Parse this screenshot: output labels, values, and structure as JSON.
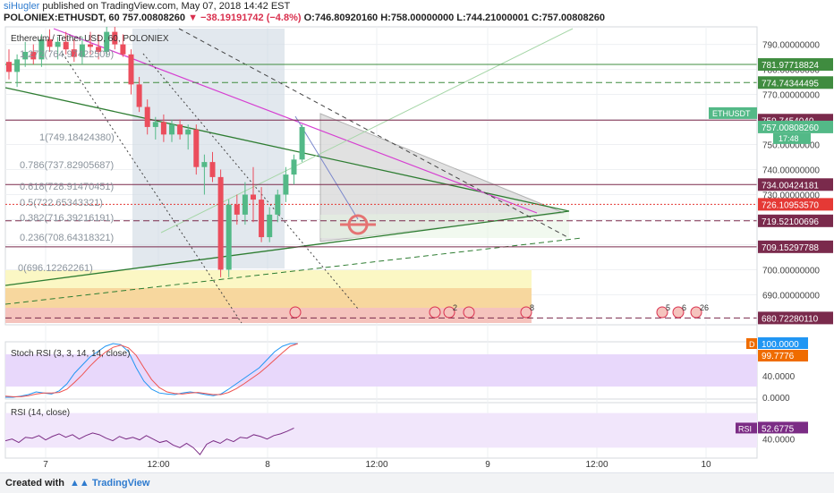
{
  "header": {
    "publisher": "siHugler",
    "published_text": "published on TradingView.com, May 07, 2018 14:42 EST",
    "symbol": "POLONIEX:ETHUSDT, 60",
    "last": "757.00808260",
    "change": "▼ −38.19191742 (−4.8%)",
    "ohlc": "O:746.80920160 H:758.00000000 L:744.21000001 C:757.00808260"
  },
  "chart_data": [
    {
      "type": "candlestick",
      "title": "Ethereum / Tether USD, 60, POLONIEX",
      "x_ticks": [
        "7",
        "12:00",
        "8",
        "12:00",
        "9",
        "12:00",
        "10"
      ],
      "y_ticks": [
        "790.00000000",
        "780.00000000",
        "770.00000000",
        "760.00000000",
        "750.00000000",
        "740.00000000",
        "730.00000000",
        "720.00000000",
        "710.00000000",
        "700.00000000",
        "690.00000000"
      ],
      "ylim": [
        678,
        797
      ],
      "candles": [
        [
          783,
          788,
          776,
          779
        ],
        [
          779,
          786,
          773,
          784
        ],
        [
          784,
          791,
          781,
          787
        ],
        [
          787,
          790,
          782,
          784
        ],
        [
          784,
          794,
          781,
          792
        ],
        [
          792,
          796,
          787,
          789
        ],
        [
          789,
          793,
          784,
          791
        ],
        [
          791,
          795,
          786,
          788
        ],
        [
          788,
          792,
          783,
          785
        ],
        [
          785,
          793,
          782,
          790
        ],
        [
          790,
          795,
          786,
          789
        ],
        [
          789,
          794,
          784,
          787
        ],
        [
          787,
          797,
          785,
          795
        ],
        [
          795,
          797,
          788,
          790
        ],
        [
          790,
          794,
          785,
          786
        ],
        [
          786,
          788,
          770,
          774
        ],
        [
          774,
          777,
          763,
          765
        ],
        [
          765,
          768,
          754,
          757
        ],
        [
          757,
          761,
          752,
          759
        ],
        [
          759,
          762,
          751,
          754
        ],
        [
          754,
          760,
          751,
          758
        ],
        [
          758,
          760,
          752,
          754
        ],
        [
          754,
          758,
          748,
          756
        ],
        [
          756,
          758,
          738,
          741
        ],
        [
          741,
          746,
          730,
          743
        ],
        [
          743,
          747,
          735,
          737
        ],
        [
          737,
          740,
          697,
          700
        ],
        [
          700,
          728,
          697,
          726
        ],
        [
          726,
          730,
          718,
          722
        ],
        [
          722,
          735,
          718,
          730
        ],
        [
          730,
          741,
          719,
          728
        ],
        [
          728,
          733,
          711,
          713
        ],
        [
          713,
          725,
          711,
          722
        ],
        [
          722,
          732,
          719,
          730
        ],
        [
          730,
          741,
          727,
          738
        ],
        [
          738,
          746,
          734,
          744
        ],
        [
          744,
          758,
          743,
          757
        ]
      ],
      "fib_levels": [
        "1.272(764.97422509)",
        "1(749.18424380)",
        "0.786(737.82905687)",
        "0.618(728.91470451)",
        "0.5(722.65343321)",
        "0.382(716.39216191)",
        "0.236(708.64318321)",
        "0(696.12262261)"
      ],
      "price_lines": [
        {
          "value": 781.97718824,
          "label": "781.97718824",
          "color": "#3f8c3f"
        },
        {
          "value": 774.74344495,
          "label": "774.74344495",
          "color": "#3f8c3f"
        },
        {
          "value": 759.745404,
          "label": "759.7454040",
          "color": "#7a2a4c"
        },
        {
          "value": 734.00424181,
          "label": "734.00424181",
          "color": "#7a2a4c"
        },
        {
          "value": 726.1095357,
          "label": "726.10953570",
          "color": "#e53935"
        },
        {
          "value": 719.52100696,
          "label": "719.52100696",
          "color": "#7a2a4c"
        },
        {
          "value": 709.15297788,
          "label": "709.15297788",
          "color": "#7a2a4c"
        },
        {
          "value": 680.7228011,
          "label": "680.72280110",
          "color": "#7a2a4c"
        }
      ],
      "last_price_label": "757.00808260",
      "symbol_badge": "ETHUSDT",
      "countdown": "17:48",
      "event_badges": [
        "2",
        "8",
        "5",
        "6",
        "26"
      ]
    },
    {
      "type": "line",
      "title": "Stoch RSI (3, 3, 14, 14, close)",
      "y_ticks": [
        "80.0000",
        "40.0000",
        "0.0000"
      ],
      "ylim": [
        0,
        100
      ],
      "series": [
        {
          "color": "#2196f3",
          "values": [
            0,
            0,
            2,
            5,
            10,
            8,
            6,
            12,
            25,
            45,
            60,
            75,
            85,
            95,
            100,
            98,
            85,
            55,
            30,
            15,
            8,
            6,
            5,
            8,
            10,
            8,
            5,
            3,
            6,
            15,
            25,
            35,
            45,
            55,
            70,
            85,
            95,
            100,
            100
          ]
        },
        {
          "color": "#ef5350",
          "values": [
            2,
            1,
            1,
            3,
            6,
            8,
            8,
            9,
            15,
            28,
            42,
            58,
            72,
            84,
            93,
            97,
            92,
            78,
            55,
            33,
            18,
            10,
            7,
            6,
            8,
            9,
            7,
            5,
            5,
            9,
            16,
            25,
            35,
            45,
            57,
            70,
            83,
            95,
            100
          ]
        }
      ],
      "value_labels": [
        "100.0000",
        "99.7776"
      ],
      "marker": "D"
    },
    {
      "type": "line",
      "title": "RSI (14, close)",
      "y_ticks": [
        "40.0000"
      ],
      "ylim": [
        20,
        80
      ],
      "series": [
        {
          "color": "#7b2c85",
          "values": [
            38,
            40,
            36,
            42,
            41,
            44,
            39,
            43,
            46,
            42,
            45,
            40,
            44,
            47,
            45,
            41,
            38,
            43,
            40,
            42,
            39,
            44,
            40,
            36,
            38,
            33,
            30,
            35,
            30,
            22,
            34,
            38,
            35,
            40,
            37,
            42,
            41,
            45,
            43,
            40,
            44,
            46,
            49,
            52.6775
          ]
        }
      ],
      "value_label": "52.6775",
      "badge": "RSI"
    }
  ],
  "footer": {
    "created": "Created with",
    "brand": "TradingView"
  },
  "colors": {
    "up": "#53b987",
    "down": "#eb4d5c",
    "grid": "#eef0f3",
    "stoch_band": "#e8d8fb",
    "rsi_band": "#f1e6fb"
  }
}
